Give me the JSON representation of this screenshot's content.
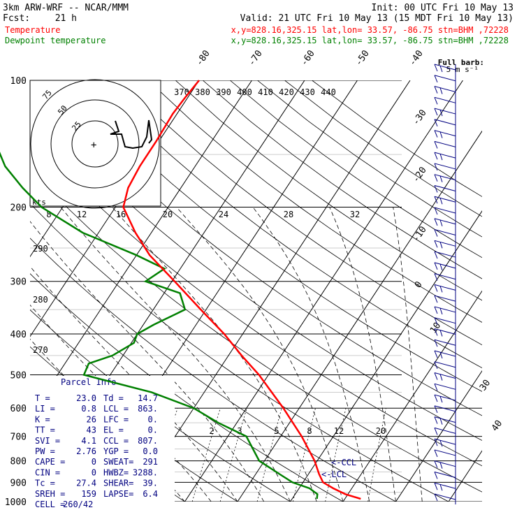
{
  "header": {
    "title": "3km ARW-WRF -- NCAR/MMM",
    "init": "Init: 00 UTC Fri 10 May 13",
    "fcst_label": "Fcst:",
    "fcst_value": "21 h",
    "valid": "Valid: 21 UTC Fri 10 May 13 (15 MDT Fri 10 May 13)",
    "temp_label": "Temperature",
    "dew_label": "Dewpoint temperature",
    "loc_line": "x,y=828.16,325.15   lat,lon= 33.57, -86.75   stn=BHM ,72228",
    "barb_note_1": "Full barb:",
    "barb_note_2": "5 m s⁻¹",
    "hodo_units": "kts",
    "parcel_title": "Parcel Info"
  },
  "colors": {
    "temperature": "#ff0000",
    "dewpoint": "#008000",
    "info_text": "#000080",
    "barbs": "#000080",
    "header_text": "#000000"
  },
  "chart_data": {
    "type": "line",
    "title": "",
    "ylabel": "",
    "xlabel": "",
    "yscale": "log",
    "ylim": [
      1000,
      100
    ],
    "pressure_ticks": [
      100,
      200,
      300,
      400,
      500,
      600,
      700,
      800,
      900,
      1000
    ],
    "isotherm_ticks": [
      -90,
      -80,
      -70,
      -60,
      -50,
      -40,
      -30,
      -20,
      -10,
      0,
      10,
      20,
      30,
      40
    ],
    "isotherm_labels": [
      "-80",
      "-70",
      "-60",
      "-50",
      "-40",
      "-30",
      "-20",
      "-10",
      "0",
      "10",
      "30",
      "40"
    ],
    "theta_labels": [
      "370",
      "380",
      "390",
      "400",
      "410",
      "420",
      "430",
      "440"
    ],
    "theta_e_labels": [
      "8",
      "12",
      "16",
      "20",
      "24",
      "28",
      "32"
    ],
    "theta_low_labels": [
      "290",
      "280",
      "270"
    ],
    "mixing_ratio_labels": [
      "2",
      "3",
      "5",
      "8",
      "12",
      "20"
    ],
    "series": [
      {
        "name": "Temperature",
        "pressure": [
          985,
          960,
          930,
          900,
          860,
          800,
          700,
          600,
          500,
          450,
          400,
          350,
          300,
          260,
          230,
          200,
          180,
          160,
          140,
          120,
          110,
          100
        ],
        "temp_c": [
          23.0,
          19.5,
          16.5,
          13.8,
          12.0,
          9.5,
          4.0,
          -3.0,
          -11.8,
          -17.5,
          -23.5,
          -31.0,
          -39.5,
          -47.5,
          -53.0,
          -58.5,
          -60.0,
          -60.5,
          -60.5,
          -60.8,
          -60.5,
          -60.0
        ]
      },
      {
        "name": "Dewpoint temperature",
        "pressure": [
          985,
          960,
          930,
          900,
          860,
          800,
          700,
          650,
          600,
          550,
          500,
          470,
          450,
          420,
          400,
          380,
          350,
          320,
          300,
          280,
          260,
          230,
          200,
          180,
          160,
          140,
          120,
          110,
          100
        ],
        "dew_c": [
          14.7,
          14.2,
          12.0,
          8.0,
          4.5,
          -1.0,
          -6.5,
          -13.5,
          -20.0,
          -30.0,
          -45.0,
          -45.5,
          -42.0,
          -39.5,
          -40.0,
          -38.0,
          -34.0,
          -37.0,
          -45.0,
          -43.0,
          -50.0,
          -63.0,
          -74.0,
          -80.0,
          -86.0,
          -91.0,
          -94.0,
          -96.0,
          -100.0
        ]
      }
    ],
    "annotations": [
      "<-CCL",
      "<-LCL"
    ],
    "wind_barbs_levels": 40
  },
  "parcel_info": [
    [
      "T  =",
      "23.0",
      "Td =",
      "14.7"
    ],
    [
      "LI =",
      "0.8",
      "LCL =",
      "863."
    ],
    [
      "K  =",
      "26",
      "LFC =",
      "0."
    ],
    [
      "TT =",
      "43",
      "EL  =",
      "0."
    ],
    [
      "SVI =",
      "4.1",
      "CCL =",
      "807."
    ],
    [
      "PW =",
      "2.76",
      "YGP =",
      "0.0"
    ],
    [
      "CAPE =",
      "0",
      "SWEAT=",
      "291"
    ],
    [
      "CIN =",
      "0",
      "HWBZ=",
      "3288."
    ],
    [
      "Tc =",
      "27.4",
      "SHEAR=",
      "39."
    ],
    [
      "SREH =",
      "159",
      "LAPSE=",
      "6.4"
    ],
    [
      "CELL =",
      "260/42",
      "",
      ""
    ]
  ],
  "hodograph": {
    "ring_labels": [
      "75",
      "50",
      "25"
    ]
  }
}
